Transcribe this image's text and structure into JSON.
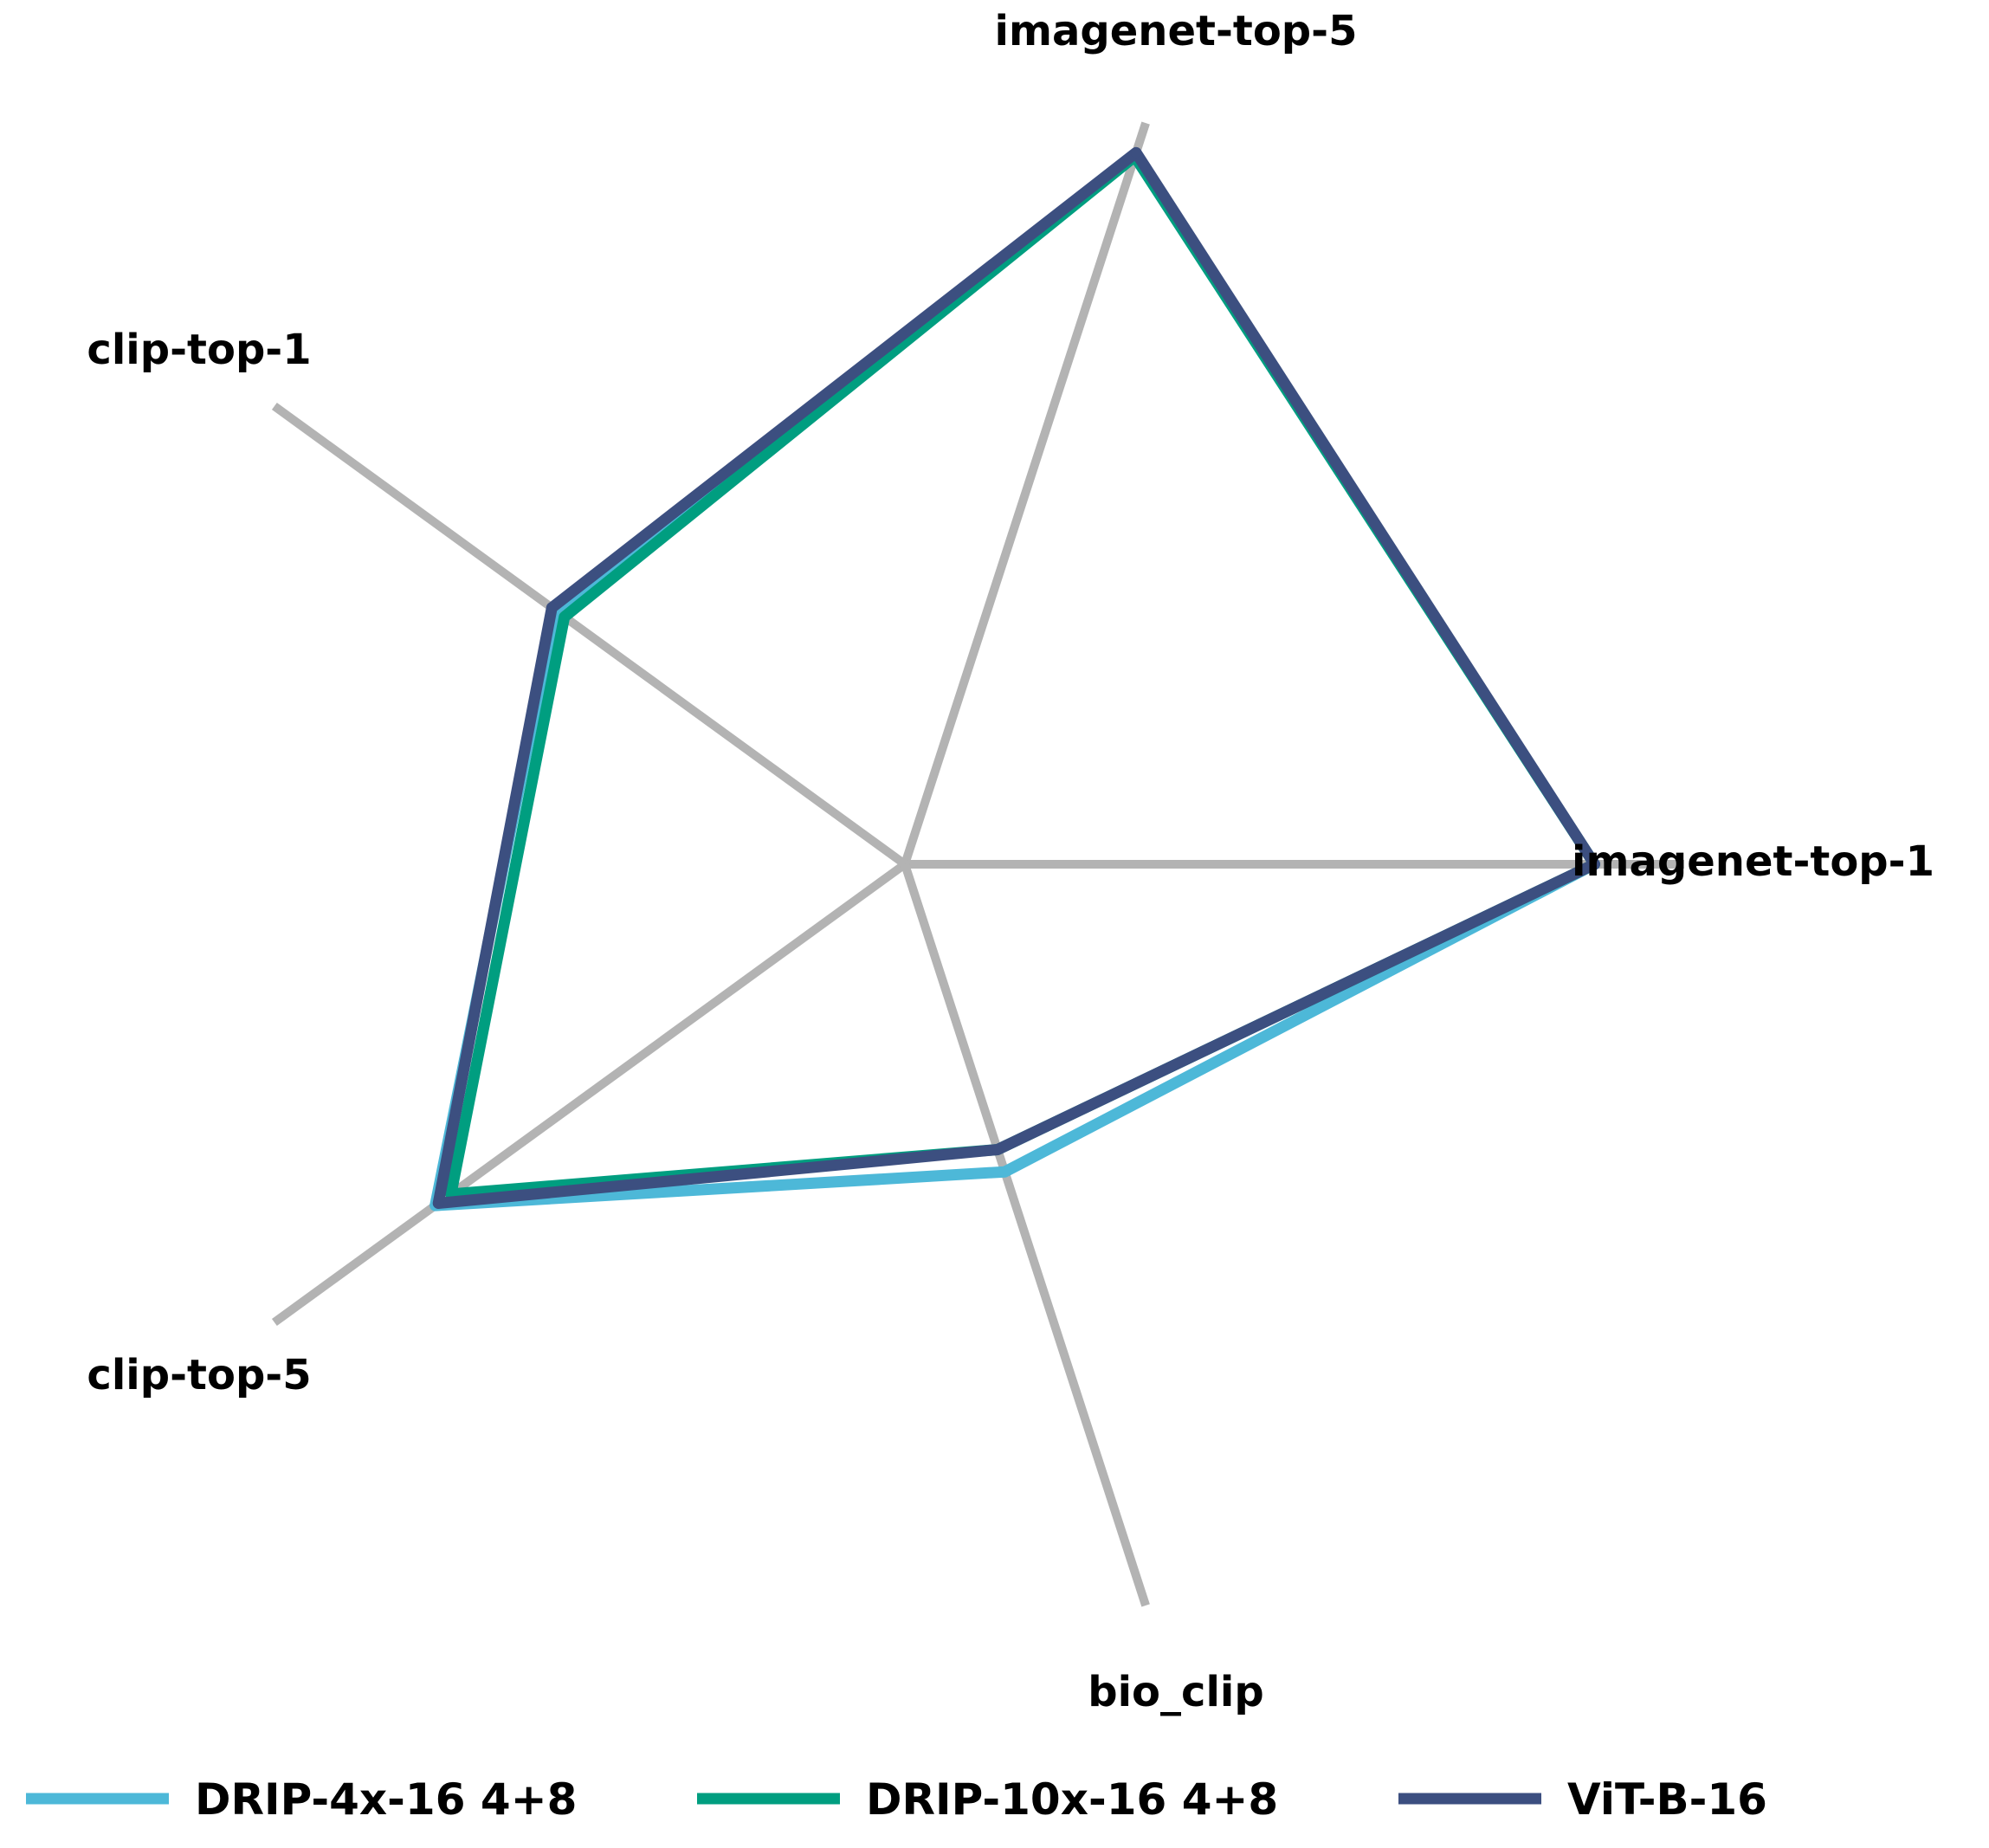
{
  "chart_data": {
    "type": "radar",
    "axes": [
      "imagenet-top-1",
      "imagenet-top-5",
      "clip-top-1",
      "clip-top-5",
      "bio_clip"
    ],
    "grid": false,
    "legend_position": "bottom",
    "axis_color": "#b3b3b3",
    "series": [
      {
        "name": "DRIP-4x-16 4+8",
        "color": "#4db8d8",
        "values": [
          0.885,
          0.955,
          0.555,
          0.745,
          0.415
        ]
      },
      {
        "name": "DRIP-10x-16 4+8",
        "color": "#009e80",
        "values": [
          0.885,
          0.955,
          0.54,
          0.72,
          0.385
        ]
      },
      {
        "name": "ViT-B-16",
        "color": "#3c4f80",
        "values": [
          0.885,
          0.96,
          0.56,
          0.74,
          0.385
        ]
      }
    ]
  }
}
